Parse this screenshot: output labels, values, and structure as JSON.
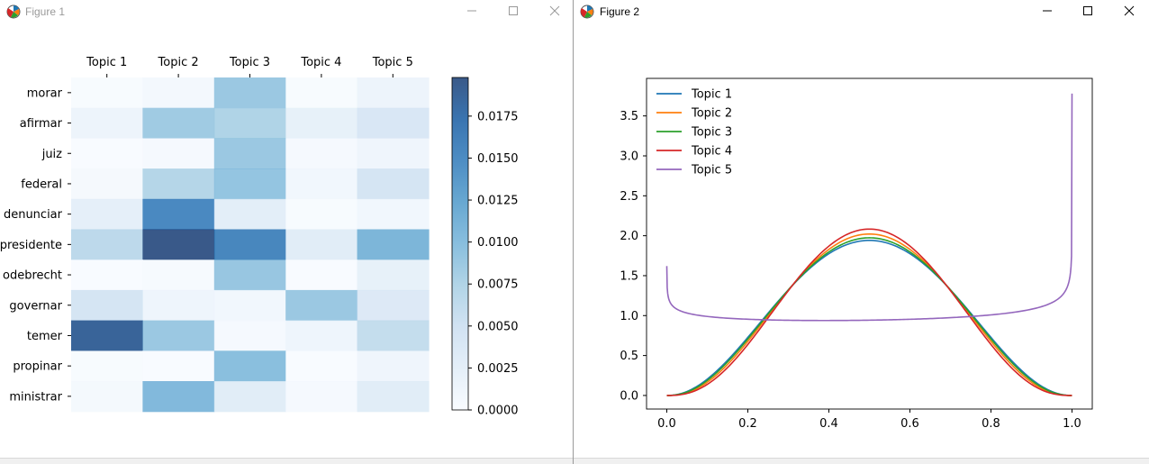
{
  "windows": [
    {
      "title": "Figure 1"
    },
    {
      "title": "Figure 2"
    }
  ],
  "icons": {
    "app": "matplotlib-logo-icon",
    "minimize": "minimize-icon",
    "maximize": "maximize-icon",
    "close": "close-icon"
  },
  "colors": {
    "colormap_low": "#f7fbff",
    "colormap_mid": "#6baed6",
    "colormap_high": "#08306b",
    "topic_1": "#1f77b4",
    "topic_2": "#ff7f0e",
    "topic_3": "#2ca02c",
    "topic_4": "#d62728",
    "topic_5": "#9467bd"
  },
  "chart_data": [
    {
      "type": "heatmap",
      "x_categories": [
        "Topic 1",
        "Topic 2",
        "Topic 3",
        "Topic 4",
        "Topic 5"
      ],
      "y_categories": [
        "morar",
        "afirmar",
        "juiz",
        "federal",
        "denunciar",
        "presidente",
        "odebrecht",
        "governar",
        "temer",
        "propinar",
        "ministrar"
      ],
      "values": [
        [
          0.0002,
          0.0007,
          0.0088,
          0.0002,
          0.0015
        ],
        [
          0.0015,
          0.0085,
          0.0075,
          0.0022,
          0.004
        ],
        [
          0.0001,
          0.0004,
          0.0088,
          0.0004,
          0.0012
        ],
        [
          0.0005,
          0.0072,
          0.0092,
          0.001,
          0.0045
        ],
        [
          0.0025,
          0.0152,
          0.0027,
          0.0002,
          0.001
        ],
        [
          0.0065,
          0.0198,
          0.0155,
          0.003,
          0.0108
        ],
        [
          0.0001,
          0.0003,
          0.009,
          0.0001,
          0.0022
        ],
        [
          0.0045,
          0.0013,
          0.001,
          0.0088,
          0.0035
        ],
        [
          0.0188,
          0.0088,
          0.0004,
          0.0013,
          0.006
        ],
        [
          0.0002,
          0.0001,
          0.0098,
          0.0001,
          0.0012
        ],
        [
          0.0006,
          0.0104,
          0.003,
          0.0004,
          0.003
        ]
      ],
      "vmin": 0.0,
      "vmax": 0.0198,
      "colorbar_ticks": [
        0.0,
        0.0025,
        0.005,
        0.0075,
        0.01,
        0.0125,
        0.015,
        0.0175
      ],
      "colorbar_labels": [
        "0.0000",
        "0.0025",
        "0.0050",
        "0.0075",
        "0.0100",
        "0.0125",
        "0.0150",
        "0.0175"
      ],
      "x_labels_position": "top"
    },
    {
      "type": "line",
      "xlim": [
        -0.05,
        1.05
      ],
      "ylim": [
        -0.17,
        3.97
      ],
      "xticks": [
        0.0,
        0.2,
        0.4,
        0.6,
        0.8,
        1.0
      ],
      "xtick_labels": [
        "0.0",
        "0.2",
        "0.4",
        "0.6",
        "0.8",
        "1.0"
      ],
      "yticks": [
        0.0,
        0.5,
        1.0,
        1.5,
        2.0,
        2.5,
        3.0,
        3.5
      ],
      "ytick_labels": [
        "0.0",
        "0.5",
        "1.0",
        "1.5",
        "2.0",
        "2.5",
        "3.0",
        "3.5"
      ],
      "legend_position": "top-left",
      "grid": false,
      "series": [
        {
          "name": "Topic 1",
          "distribution": "beta",
          "alpha": 3.2,
          "beta": 3.2,
          "peak": 2.13
        },
        {
          "name": "Topic 2",
          "distribution": "beta",
          "alpha": 3.45,
          "beta": 3.45,
          "peak": 2.26
        },
        {
          "name": "Topic 3",
          "distribution": "beta",
          "alpha": 3.3,
          "beta": 3.3,
          "peak": 2.22
        },
        {
          "name": "Topic 4",
          "distribution": "beta",
          "alpha": 3.65,
          "beta": 3.65,
          "peak": 2.37
        },
        {
          "name": "Topic 5",
          "distribution": "beta",
          "alpha": 0.93,
          "beta": 0.89,
          "value_at_0": 1.62,
          "value_at_1": 3.78,
          "minimum": 0.9
        }
      ]
    }
  ]
}
